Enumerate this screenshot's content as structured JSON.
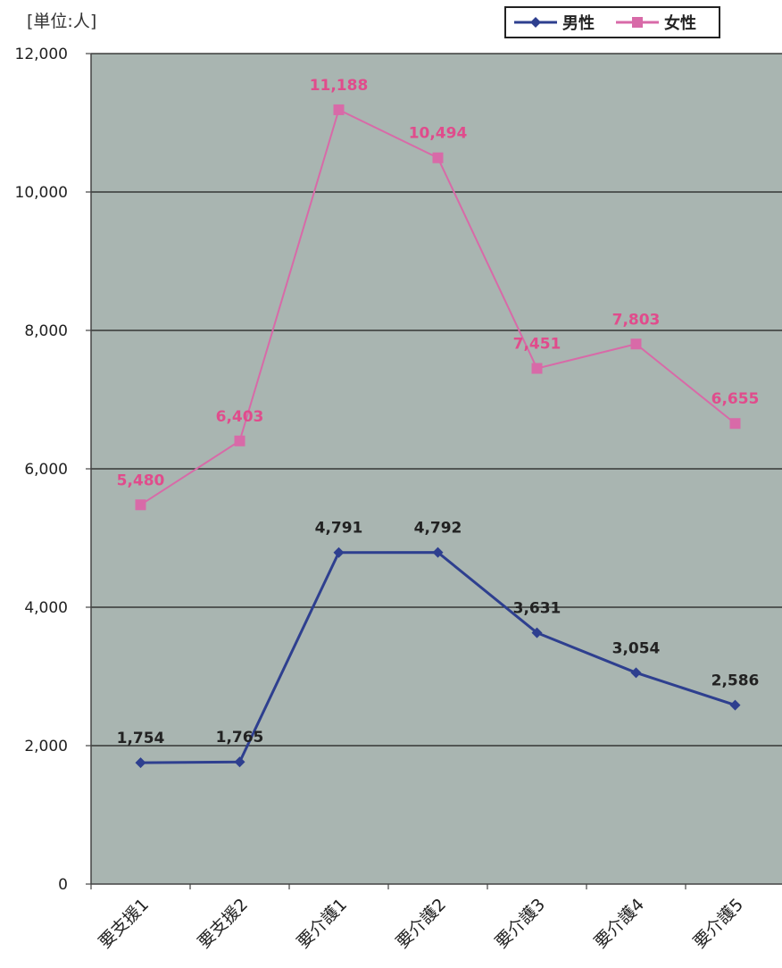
{
  "chart_data": {
    "type": "line",
    "unit_label": "[単位:人]",
    "categories": [
      "要支援1",
      "要支援2",
      "要介護1",
      "要介護2",
      "要介護3",
      "要介護4",
      "要介護5"
    ],
    "series": [
      {
        "name": "男性",
        "values": [
          1754,
          1765,
          4791,
          4792,
          3631,
          3054,
          2586
        ],
        "value_labels": [
          "1,754",
          "1,765",
          "4,791",
          "4,792",
          "3,631",
          "3,054",
          "2,586"
        ],
        "color": "#2e3f8f",
        "label_color": "#222222",
        "marker": "diamond"
      },
      {
        "name": "女性",
        "values": [
          5480,
          6403,
          11188,
          10494,
          7451,
          7803,
          6655
        ],
        "value_labels": [
          "5,480",
          "6,403",
          "11,188",
          "10,494",
          "7,451",
          "7,803",
          "6,655"
        ],
        "color": "#d86aa8",
        "label_color": "#e04c8c",
        "marker": "square"
      }
    ],
    "y_ticks": [
      "0",
      "2,000",
      "4,000",
      "6,000",
      "8,000",
      "10,000",
      "12,000"
    ],
    "ylim": [
      0,
      12000
    ],
    "grid": true,
    "legend_position": "top-right",
    "plot_background": "#a9b5b1"
  }
}
